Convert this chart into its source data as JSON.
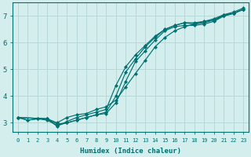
{
  "xlabel": "Humidex (Indice chaleur)",
  "bg_color": "#d4eeee",
  "grid_color": "#b8d8d8",
  "line_color": "#007070",
  "xlim": [
    -0.5,
    23.5
  ],
  "ylim": [
    2.65,
    7.5
  ],
  "xticks": [
    0,
    1,
    2,
    3,
    4,
    5,
    6,
    7,
    8,
    9,
    10,
    11,
    12,
    13,
    14,
    15,
    16,
    17,
    18,
    19,
    20,
    21,
    22,
    23
  ],
  "yticks": [
    3,
    4,
    5,
    6,
    7
  ],
  "curves": [
    {
      "x": [
        0,
        1,
        2,
        3,
        4,
        5,
        6,
        7,
        8,
        9,
        10,
        11,
        12,
        13,
        14,
        15,
        16,
        17,
        18,
        19,
        20,
        21,
        22,
        23
      ],
      "y": [
        3.2,
        3.1,
        3.15,
        3.1,
        2.9,
        3.0,
        3.1,
        3.2,
        3.3,
        3.4,
        4.0,
        4.9,
        5.4,
        5.85,
        6.2,
        6.5,
        6.65,
        6.75,
        6.7,
        6.75,
        6.85,
        7.05,
        7.1,
        7.25
      ]
    },
    {
      "x": [
        0,
        1,
        2,
        3,
        4,
        5,
        6,
        7,
        8,
        9,
        10,
        11,
        12,
        13,
        14,
        15,
        16,
        17,
        18,
        19,
        20,
        21,
        22,
        23
      ],
      "y": [
        3.2,
        3.1,
        3.15,
        3.15,
        2.95,
        3.0,
        3.1,
        3.2,
        3.3,
        3.35,
        3.75,
        4.55,
        5.3,
        5.7,
        6.1,
        6.45,
        6.6,
        6.65,
        6.65,
        6.7,
        6.8,
        7.0,
        7.1,
        7.25
      ]
    },
    {
      "x": [
        0,
        3,
        4,
        5,
        6,
        7,
        8,
        9,
        10,
        11,
        12,
        13,
        14,
        15,
        16,
        17,
        18,
        19,
        20,
        21,
        22,
        23
      ],
      "y": [
        3.2,
        3.15,
        2.87,
        3.05,
        3.2,
        3.3,
        3.4,
        3.5,
        4.4,
        5.1,
        5.55,
        5.9,
        6.25,
        6.5,
        6.65,
        6.75,
        6.75,
        6.8,
        6.85,
        7.0,
        7.1,
        7.25
      ]
    },
    {
      "x": [
        0,
        3,
        4,
        5,
        6,
        7,
        8,
        9,
        10,
        11,
        12,
        13,
        14,
        15,
        16,
        17,
        18,
        19,
        20,
        21,
        22,
        23
      ],
      "y": [
        3.2,
        3.15,
        3.0,
        3.2,
        3.3,
        3.35,
        3.5,
        3.6,
        3.85,
        4.35,
        4.85,
        5.35,
        5.85,
        6.2,
        6.45,
        6.6,
        6.7,
        6.8,
        6.9,
        7.05,
        7.15,
        7.3
      ]
    }
  ]
}
